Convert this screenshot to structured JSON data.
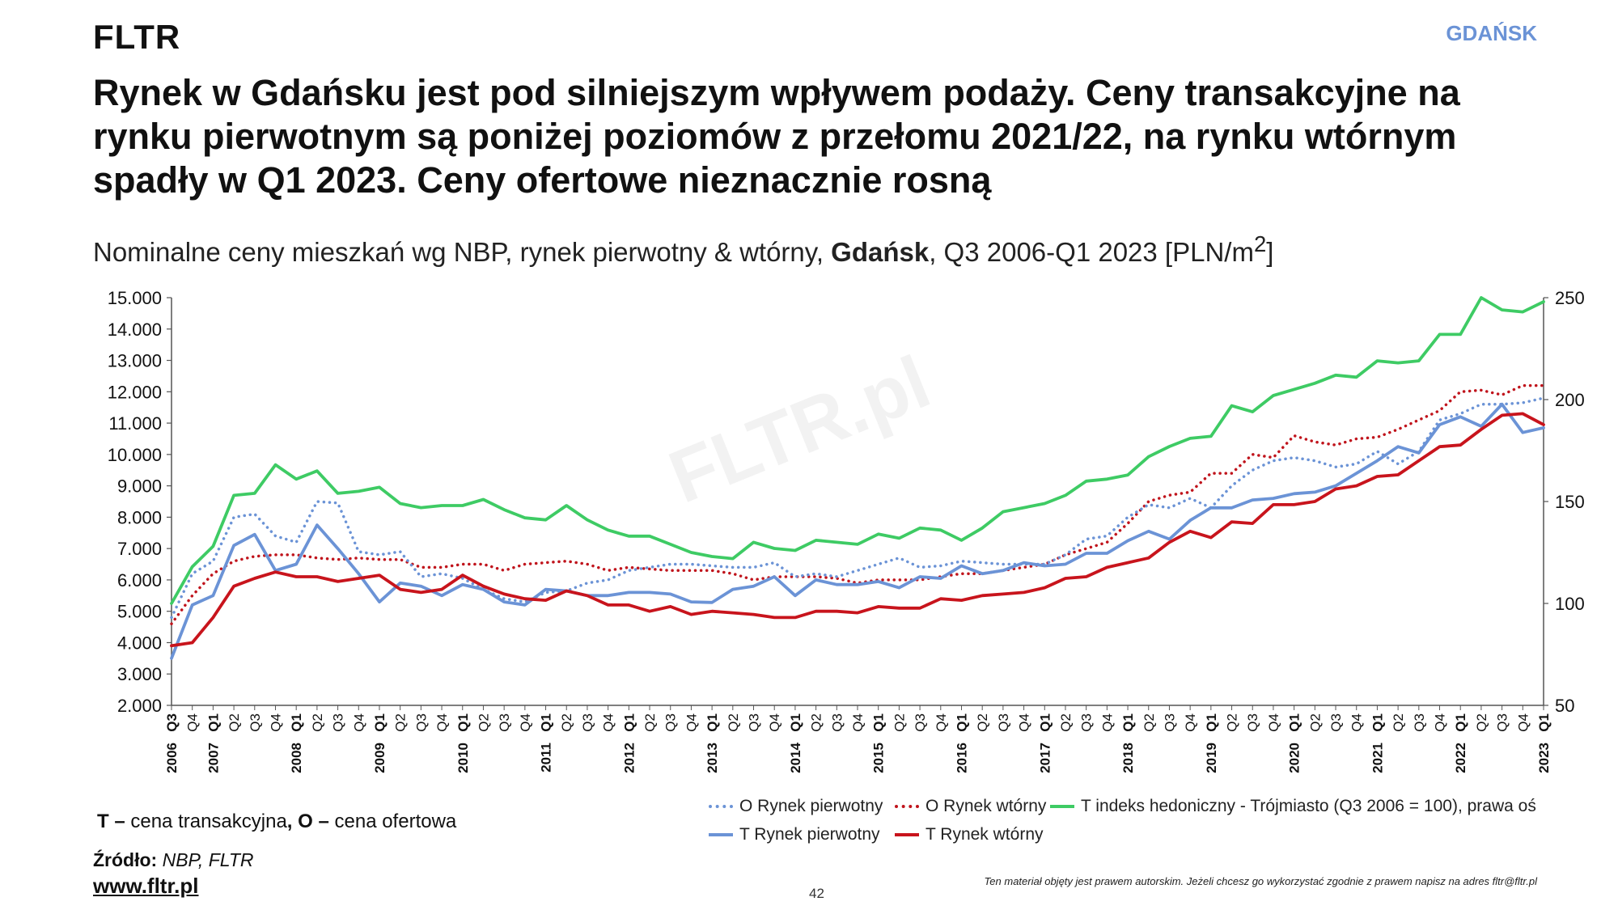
{
  "header": {
    "brand": "FLTR",
    "city": "GDAŃSK"
  },
  "title": "Rynek w Gdańsku jest pod silniejszym wpływem podaży. Ceny transakcyjne na rynku pierwotnym są poniżej poziomów z przełomu 2021/22, na rynku wtórnym spadły w Q1 2023. Ceny ofertowe nieznacznie rosną",
  "subtitle": {
    "pre": "Nominalne ceny mieszkań wg NBP, rynek pierwotny & wtórny, ",
    "bold": "Gdańsk",
    "post": ", Q3 2006-Q1 2023 [PLN/m",
    "sup": "2",
    "end": "]"
  },
  "watermark": "FLTR.pl",
  "footer": {
    "note_t": "T –",
    "note_t_text": " cena transakcyjna",
    "note_sep": ", ",
    "note_o": "O –",
    "note_o_text": " cena ofertowa",
    "source_label": "Źródło:",
    "source_text": " NBP, FLTR",
    "website": "www.fltr.pl",
    "page_number": "42",
    "copyright": "Ten materiał objęty jest prawem autorskim. Jeżeli chcesz go wykorzystać zgodnie z prawem napisz na adres fltr@fltr.pl"
  },
  "colors": {
    "o_primary": "#6b93d6",
    "o_secondary": "#c0141c",
    "t_index": "#3ecb64",
    "t_primary": "#6b93d6",
    "t_secondary": "#c8141c"
  },
  "chart_data": {
    "type": "line",
    "x": [
      "2006 Q3",
      "Q4",
      "2007 Q1",
      "Q2",
      "Q3",
      "Q4",
      "2008 Q1",
      "Q2",
      "Q3",
      "Q4",
      "2009 Q1",
      "Q2",
      "Q3",
      "Q4",
      "2010 Q1",
      "Q2",
      "Q3",
      "Q4",
      "2011 Q1",
      "Q2",
      "Q3",
      "Q4",
      "2012 Q1",
      "Q2",
      "Q3",
      "Q4",
      "2013 Q1",
      "Q2",
      "Q3",
      "Q4",
      "2014 Q1",
      "Q2",
      "Q3",
      "Q4",
      "2015 Q1",
      "Q2",
      "Q3",
      "Q4",
      "2016 Q1",
      "Q2",
      "Q3",
      "Q4",
      "2017 Q1",
      "Q2",
      "Q3",
      "Q4",
      "2018 Q1",
      "Q2",
      "Q3",
      "Q4",
      "2019 Q1",
      "Q2",
      "Q3",
      "Q4",
      "2020 Q1",
      "Q2",
      "Q3",
      "Q4",
      "2021 Q1",
      "Q2",
      "Q3",
      "Q4",
      "2022 Q1",
      "Q2",
      "Q3",
      "Q4",
      "2023 Q1"
    ],
    "tick_labels": [
      "Q3",
      "Q4",
      "Q1",
      "Q2",
      "Q3",
      "Q4",
      "Q1",
      "Q2",
      "Q3",
      "Q4",
      "Q1",
      "Q2",
      "Q3",
      "Q4",
      "Q1",
      "Q2",
      "Q3",
      "Q4",
      "Q1",
      "Q2",
      "Q3",
      "Q4",
      "Q1",
      "Q2",
      "Q3",
      "Q4",
      "Q1",
      "Q2",
      "Q3",
      "Q4",
      "Q1",
      "Q2",
      "Q3",
      "Q4",
      "Q1",
      "Q2",
      "Q3",
      "Q4",
      "Q1",
      "Q2",
      "Q3",
      "Q4",
      "Q1",
      "Q2",
      "Q3",
      "Q4",
      "Q1",
      "Q2",
      "Q3",
      "Q4",
      "Q1",
      "Q2",
      "Q3",
      "Q4",
      "Q1",
      "Q2",
      "Q3",
      "Q4",
      "Q1",
      "Q2",
      "Q3",
      "Q4",
      "Q1",
      "Q2",
      "Q3",
      "Q4",
      "Q1"
    ],
    "year_labels": [
      {
        "index": 0,
        "label": "2006"
      },
      {
        "index": 2,
        "label": "2007"
      },
      {
        "index": 6,
        "label": "2008"
      },
      {
        "index": 10,
        "label": "2009"
      },
      {
        "index": 14,
        "label": "2010"
      },
      {
        "index": 18,
        "label": "2011"
      },
      {
        "index": 22,
        "label": "2012"
      },
      {
        "index": 26,
        "label": "2013"
      },
      {
        "index": 30,
        "label": "2014"
      },
      {
        "index": 34,
        "label": "2015"
      },
      {
        "index": 38,
        "label": "2016"
      },
      {
        "index": 42,
        "label": "2017"
      },
      {
        "index": 46,
        "label": "2018"
      },
      {
        "index": 50,
        "label": "2019"
      },
      {
        "index": 54,
        "label": "2020"
      },
      {
        "index": 58,
        "label": "2021"
      },
      {
        "index": 62,
        "label": "2022"
      },
      {
        "index": 66,
        "label": "2023"
      }
    ],
    "ylim": [
      2000,
      15000
    ],
    "y_ticks": [
      "2.000",
      "3.000",
      "4.000",
      "5.000",
      "6.000",
      "7.000",
      "8.000",
      "9.000",
      "10.000",
      "11.000",
      "12.000",
      "13.000",
      "14.000",
      "15.000"
    ],
    "y2lim": [
      50,
      250
    ],
    "y2_ticks": [
      "50",
      "100",
      "150",
      "200",
      "250"
    ],
    "series": [
      {
        "name": "O Rynek pierwotny",
        "axis": "left",
        "style": "dotted",
        "color": "#6b93d6",
        "values": [
          4800,
          6200,
          6600,
          8000,
          8100,
          7400,
          7200,
          8500,
          8450,
          6900,
          6800,
          6900,
          6100,
          6200,
          6050,
          5700,
          5400,
          5300,
          5600,
          5650,
          5900,
          6000,
          6300,
          6400,
          6500,
          6500,
          6450,
          6400,
          6400,
          6550,
          6100,
          6200,
          6100,
          6300,
          6500,
          6700,
          6400,
          6450,
          6600,
          6550,
          6500,
          6500,
          6500,
          6800,
          7300,
          7400,
          8000,
          8400,
          8300,
          8600,
          8300,
          9000,
          9500,
          9800,
          9900,
          9800,
          9600,
          9700,
          10100,
          9700,
          10100,
          11100,
          11300,
          11600,
          11600,
          11650,
          11800
        ]
      },
      {
        "name": "O Rynek wtórny",
        "axis": "left",
        "style": "dotted",
        "color": "#c0141c",
        "values": [
          4600,
          5500,
          6200,
          6600,
          6750,
          6800,
          6800,
          6700,
          6650,
          6700,
          6650,
          6650,
          6400,
          6400,
          6500,
          6500,
          6300,
          6500,
          6550,
          6600,
          6500,
          6300,
          6400,
          6350,
          6300,
          6300,
          6300,
          6200,
          6000,
          6100,
          6100,
          6100,
          6050,
          5900,
          6000,
          6000,
          6000,
          6100,
          6200,
          6200,
          6300,
          6400,
          6500,
          6800,
          7000,
          7200,
          7800,
          8500,
          8700,
          8800,
          9400,
          9400,
          10000,
          9900,
          10600,
          10400,
          10300,
          10500,
          10550,
          10800,
          11100,
          11400,
          12000,
          12050,
          11900,
          12200,
          12200
        ]
      },
      {
        "name": "T indeks hedoniczny - Trójmiasto (Q3 2006 = 100), prawa oś",
        "axis": "right",
        "style": "solid",
        "color": "#3ecb64",
        "values": [
          100,
          118,
          128,
          153,
          154,
          168,
          161,
          165,
          154,
          155,
          157,
          149,
          147,
          148,
          148,
          151,
          146,
          142,
          141,
          148,
          141,
          136,
          133,
          133,
          129,
          125,
          123,
          122,
          130,
          127,
          126,
          131,
          130,
          129,
          134,
          132,
          137,
          136,
          131,
          137,
          145,
          147,
          149,
          153,
          160,
          161,
          163,
          172,
          177,
          181,
          182,
          197,
          194,
          202,
          205,
          208,
          212,
          211,
          219,
          218,
          219,
          232,
          232,
          250,
          244,
          243,
          248
        ]
      },
      {
        "name": "T Rynek pierwotny",
        "axis": "left",
        "style": "solid",
        "color": "#6b93d6",
        "values": [
          3500,
          5200,
          5500,
          7100,
          7450,
          6300,
          6500,
          7750,
          7000,
          6200,
          5300,
          5900,
          5800,
          5500,
          5850,
          5700,
          5300,
          5200,
          5700,
          5650,
          5500,
          5500,
          5600,
          5600,
          5550,
          5300,
          5280,
          5700,
          5800,
          6100,
          5500,
          6000,
          5850,
          5850,
          5950,
          5750,
          6100,
          6050,
          6450,
          6200,
          6300,
          6550,
          6450,
          6500,
          6850,
          6850,
          7250,
          7550,
          7300,
          7900,
          8300,
          8300,
          8550,
          8600,
          8750,
          8800,
          9000,
          9400,
          9800,
          10250,
          10050,
          10950,
          11200,
          10900,
          11600,
          10700,
          10850
        ]
      },
      {
        "name": "T Rynek wtórny",
        "axis": "left",
        "style": "solid",
        "color": "#c8141c",
        "values": [
          3900,
          4000,
          4800,
          5800,
          6050,
          6250,
          6100,
          6100,
          5950,
          6050,
          6150,
          5700,
          5600,
          5700,
          6150,
          5800,
          5550,
          5400,
          5350,
          5650,
          5500,
          5200,
          5200,
          5000,
          5150,
          4900,
          5000,
          4950,
          4900,
          4800,
          4800,
          5000,
          5000,
          4950,
          5150,
          5100,
          5100,
          5400,
          5350,
          5500,
          5550,
          5600,
          5750,
          6050,
          6100,
          6400,
          6550,
          6700,
          7200,
          7550,
          7350,
          7850,
          7800,
          8400,
          8400,
          8500,
          8900,
          9000,
          9300,
          9350,
          9800,
          10250,
          10300,
          10800,
          11250,
          11300,
          10950
        ]
      }
    ]
  }
}
